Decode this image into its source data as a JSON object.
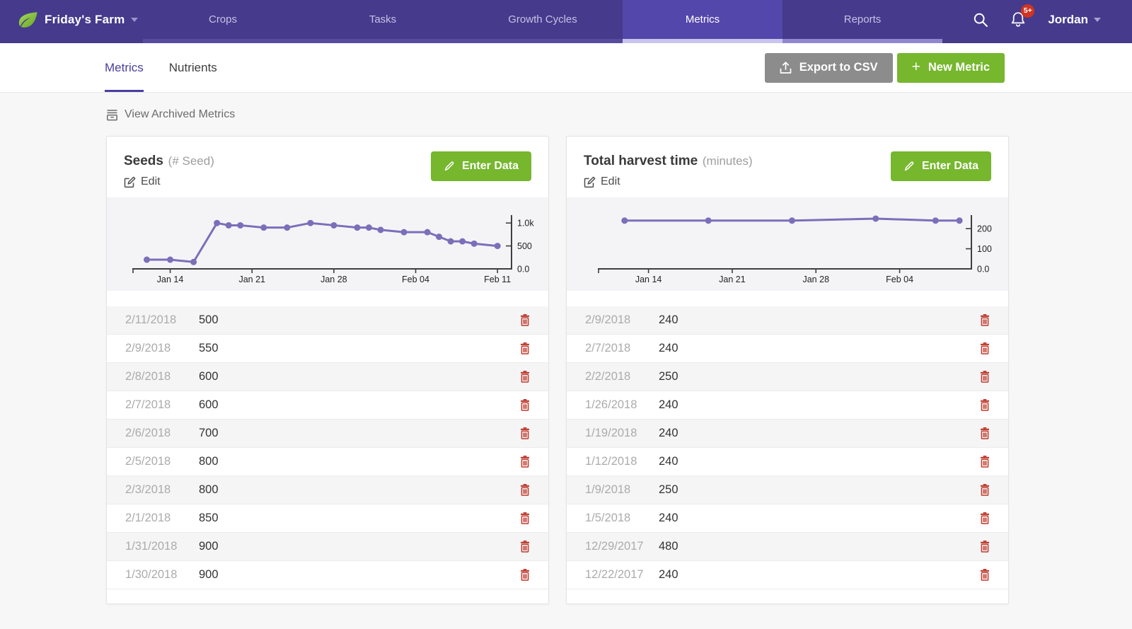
{
  "colors": {
    "page-bg": "#f7f7f8",
    "nav-bg": "#453a8c",
    "nav-active-bg": "#5347ab",
    "nav-text": "#c7c2e4",
    "accent-purple": "#4a3f9f",
    "green": "#76b72e",
    "gray-button": "#8c8c8c",
    "badge-red": "#cf3421",
    "chart-bg": "#f4f4f6",
    "chart-line": "#7b6fba",
    "red-delete": "#bf392b",
    "row-stripe": "#f5f5f6",
    "date-gray": "#ababab",
    "text-gray": "#9e9e9e"
  },
  "nav": {
    "brand": "Friday's Farm",
    "items": [
      {
        "label": "Crops",
        "active": false,
        "strip_color": "#564b9f"
      },
      {
        "label": "Tasks",
        "active": false,
        "strip_color": "#564b9f"
      },
      {
        "label": "Growth Cycles",
        "active": false,
        "strip_color": "#564b9f"
      },
      {
        "label": "Metrics",
        "active": true,
        "strip_color": "#c9c4ec"
      },
      {
        "label": "Reports",
        "active": false,
        "strip_color": "#9187d0"
      }
    ],
    "user": "Jordan",
    "notification_badge": "5+"
  },
  "subnav": {
    "tabs": [
      {
        "label": "Metrics",
        "active": true
      },
      {
        "label": "Nutrients",
        "active": false
      }
    ],
    "export_button": "Export to CSV",
    "new_metric_button": "New Metric",
    "new_metric_plus": "+"
  },
  "archived_link": "View Archived Metrics",
  "cards": [
    {
      "title": "Seeds",
      "unit": "(# Seed)",
      "edit_label": "Edit",
      "enter_data_label": "Enter Data",
      "rows": [
        {
          "date": "2/11/2018",
          "value": "500"
        },
        {
          "date": "2/9/2018",
          "value": "550"
        },
        {
          "date": "2/8/2018",
          "value": "600"
        },
        {
          "date": "2/7/2018",
          "value": "600"
        },
        {
          "date": "2/6/2018",
          "value": "700"
        },
        {
          "date": "2/5/2018",
          "value": "800"
        },
        {
          "date": "2/3/2018",
          "value": "800"
        },
        {
          "date": "2/1/2018",
          "value": "850"
        },
        {
          "date": "1/31/2018",
          "value": "900"
        },
        {
          "date": "1/30/2018",
          "value": "900"
        }
      ]
    },
    {
      "title": "Total harvest time",
      "unit": "(minutes)",
      "edit_label": "Edit",
      "enter_data_label": "Enter Data",
      "rows": [
        {
          "date": "2/9/2018",
          "value": "240"
        },
        {
          "date": "2/7/2018",
          "value": "240"
        },
        {
          "date": "2/2/2018",
          "value": "250"
        },
        {
          "date": "1/26/2018",
          "value": "240"
        },
        {
          "date": "1/19/2018",
          "value": "240"
        },
        {
          "date": "1/12/2018",
          "value": "240"
        },
        {
          "date": "1/9/2018",
          "value": "250"
        },
        {
          "date": "1/5/2018",
          "value": "240"
        },
        {
          "date": "12/29/2017",
          "value": "480"
        },
        {
          "date": "12/22/2017",
          "value": "240"
        }
      ]
    }
  ],
  "chart_data": [
    {
      "type": "line",
      "title": "Seeds (# Seed)",
      "line_color": "#7b6fba",
      "grid": false,
      "y_axis_position": "right",
      "points": [
        {
          "date": "1/12/2018",
          "day": 12,
          "value": 200
        },
        {
          "date": "1/14/2018",
          "day": 14,
          "value": 200
        },
        {
          "date": "1/16/2018",
          "day": 16,
          "value": 150
        },
        {
          "date": "1/18/2018",
          "day": 18,
          "value": 1000
        },
        {
          "date": "1/19/2018",
          "day": 19,
          "value": 950
        },
        {
          "date": "1/20/2018",
          "day": 20,
          "value": 950
        },
        {
          "date": "1/22/2018",
          "day": 22,
          "value": 900
        },
        {
          "date": "1/24/2018",
          "day": 24,
          "value": 900
        },
        {
          "date": "1/26/2018",
          "day": 26,
          "value": 1000
        },
        {
          "date": "1/28/2018",
          "day": 28,
          "value": 950
        },
        {
          "date": "1/30/2018",
          "day": 30,
          "value": 900
        },
        {
          "date": "1/31/2018",
          "day": 31,
          "value": 900
        },
        {
          "date": "2/1/2018",
          "day": 32,
          "value": 850
        },
        {
          "date": "2/3/2018",
          "day": 34,
          "value": 800
        },
        {
          "date": "2/5/2018",
          "day": 36,
          "value": 800
        },
        {
          "date": "2/6/2018",
          "day": 37,
          "value": 700
        },
        {
          "date": "2/7/2018",
          "day": 38,
          "value": 600
        },
        {
          "date": "2/8/2018",
          "day": 39,
          "value": 600
        },
        {
          "date": "2/9/2018",
          "day": 40,
          "value": 550
        },
        {
          "date": "2/11/2018",
          "day": 42,
          "value": 500
        }
      ],
      "x_ticks": [
        {
          "day": 14,
          "label": "Jan 14"
        },
        {
          "day": 21,
          "label": "Jan 21"
        },
        {
          "day": 28,
          "label": "Jan 28"
        },
        {
          "day": 35,
          "label": "Feb 04"
        },
        {
          "day": 42,
          "label": "Feb 11"
        }
      ],
      "y_ticks": [
        {
          "v": 0,
          "label": "0.0"
        },
        {
          "v": 500,
          "label": "500"
        },
        {
          "v": 1000,
          "label": "1.0k"
        }
      ],
      "xlim": [
        11,
        43.2
      ],
      "ylim": [
        0,
        1250
      ],
      "plot_x0": 40
    },
    {
      "type": "line",
      "title": "Total harvest time (minutes)",
      "line_color": "#7b6fba",
      "grid": false,
      "y_axis_position": "right",
      "points": [
        {
          "date": "1/12/2018",
          "day": 12,
          "value": 240
        },
        {
          "date": "1/19/2018",
          "day": 19,
          "value": 240
        },
        {
          "date": "1/26/2018",
          "day": 26,
          "value": 240
        },
        {
          "date": "2/2/2018",
          "day": 33,
          "value": 250
        },
        {
          "date": "2/7/2018",
          "day": 38,
          "value": 240
        },
        {
          "date": "2/9/2018",
          "day": 40,
          "value": 240
        }
      ],
      "x_ticks": [
        {
          "day": 14,
          "label": "Jan 14"
        },
        {
          "day": 21,
          "label": "Jan 21"
        },
        {
          "day": 28,
          "label": "Jan 28"
        },
        {
          "day": 35,
          "label": "Feb 04"
        }
      ],
      "y_ticks": [
        {
          "v": 0,
          "label": "0.0"
        },
        {
          "v": 100,
          "label": "100"
        },
        {
          "v": 200,
          "label": "200"
        }
      ],
      "xlim": [
        10,
        41
      ],
      "ylim": [
        0,
        285
      ],
      "plot_x0": 48
    }
  ]
}
